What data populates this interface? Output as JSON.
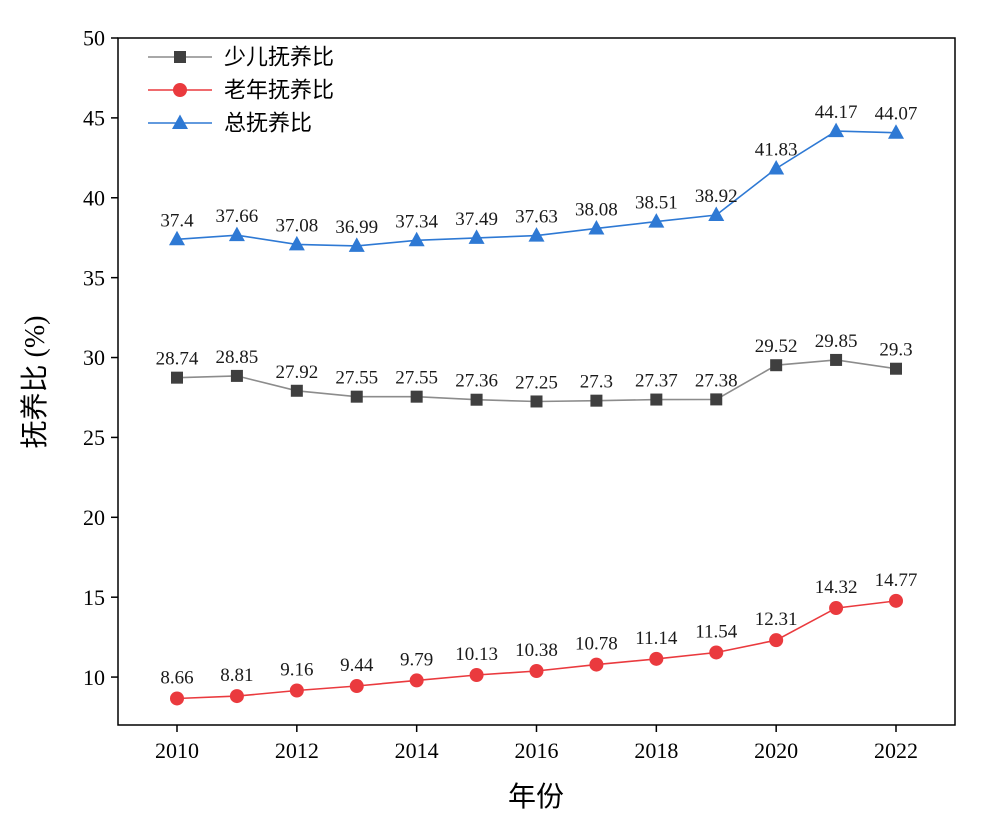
{
  "chart_data": {
    "type": "line",
    "title": "",
    "xlabel": "年份",
    "ylabel": "抚养比 (%)",
    "x": [
      2010,
      2011,
      2012,
      2013,
      2014,
      2015,
      2016,
      2017,
      2018,
      2019,
      2020,
      2021,
      2022
    ],
    "xtick_labels": [
      "2010",
      "2012",
      "2014",
      "2016",
      "2018",
      "2020",
      "2022"
    ],
    "yticks": [
      10,
      15,
      20,
      25,
      30,
      35,
      40,
      45,
      50
    ],
    "ylim": [
      7,
      50
    ],
    "grid": false,
    "legend_position": "top-left-inside",
    "series": [
      {
        "name": "少儿抚养比",
        "marker": "square",
        "marker_color": "#3f3f3f",
        "line_color": "#8c8c8c",
        "values": [
          28.74,
          28.85,
          27.92,
          27.55,
          27.55,
          27.36,
          27.25,
          27.3,
          27.37,
          27.38,
          29.52,
          29.85,
          29.3
        ],
        "labels": [
          "28.74",
          "28.85",
          "27.92",
          "27.55",
          "27.55",
          "27.36",
          "27.25",
          "27.3",
          "27.37",
          "27.38",
          "29.52",
          "29.85",
          "29.3"
        ]
      },
      {
        "name": "老年抚养比",
        "marker": "circle",
        "marker_color": "#ea3a3e",
        "line_color": "#ea3a3e",
        "values": [
          8.66,
          8.81,
          9.16,
          9.44,
          9.79,
          10.13,
          10.38,
          10.78,
          11.14,
          11.54,
          12.31,
          14.32,
          14.77
        ],
        "labels": [
          "8.66",
          "8.81",
          "9.16",
          "9.44",
          "9.79",
          "10.13",
          "10.38",
          "10.78",
          "11.14",
          "11.54",
          "12.31",
          "14.32",
          "14.77"
        ]
      },
      {
        "name": "总抚养比",
        "marker": "triangle",
        "marker_color": "#2e79d4",
        "line_color": "#2e79d4",
        "values": [
          37.4,
          37.66,
          37.08,
          36.99,
          37.34,
          37.49,
          37.63,
          38.08,
          38.51,
          38.92,
          41.83,
          44.17,
          44.07
        ],
        "labels": [
          "37.4",
          "37.66",
          "37.08",
          "36.99",
          "37.34",
          "37.49",
          "37.63",
          "38.08",
          "38.51",
          "38.92",
          "41.83",
          "44.17",
          "44.07"
        ]
      }
    ]
  }
}
